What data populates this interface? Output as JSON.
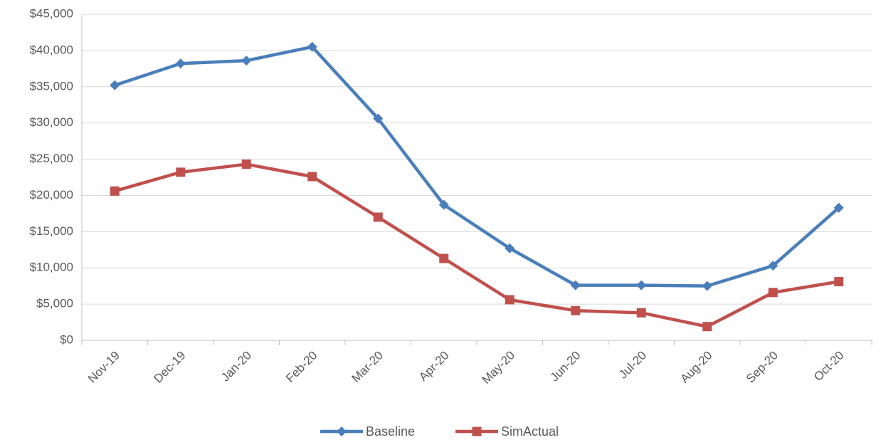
{
  "chart_data": {
    "type": "line",
    "title": "",
    "xlabel": "",
    "ylabel": "",
    "categories": [
      "Nov-19",
      "Dec-19",
      "Jan-20",
      "Feb-20",
      "Mar-20",
      "Apr-20",
      "May-20",
      "Jun-20",
      "Jul-20",
      "Aug-20",
      "Sep-20",
      "Oct-20"
    ],
    "y_ticks": [
      "$0",
      "$5,000",
      "$10,000",
      "$15,000",
      "$20,000",
      "$25,000",
      "$30,000",
      "$35,000",
      "$40,000",
      "$45,000"
    ],
    "ylim": [
      0,
      45000
    ],
    "grid": "horizontal",
    "legend_position": "bottom",
    "series": [
      {
        "name": "Baseline",
        "color": "#4a7ebb",
        "marker": "diamond",
        "values": [
          35200,
          38200,
          38600,
          40500,
          30600,
          18700,
          12700,
          7600,
          7600,
          7500,
          10300,
          18300
        ]
      },
      {
        "name": "SimActual",
        "color": "#c0504d",
        "marker": "square",
        "values": [
          20600,
          23200,
          24300,
          22600,
          17000,
          11300,
          5600,
          4100,
          3800,
          1900,
          6600,
          8100
        ]
      }
    ]
  }
}
